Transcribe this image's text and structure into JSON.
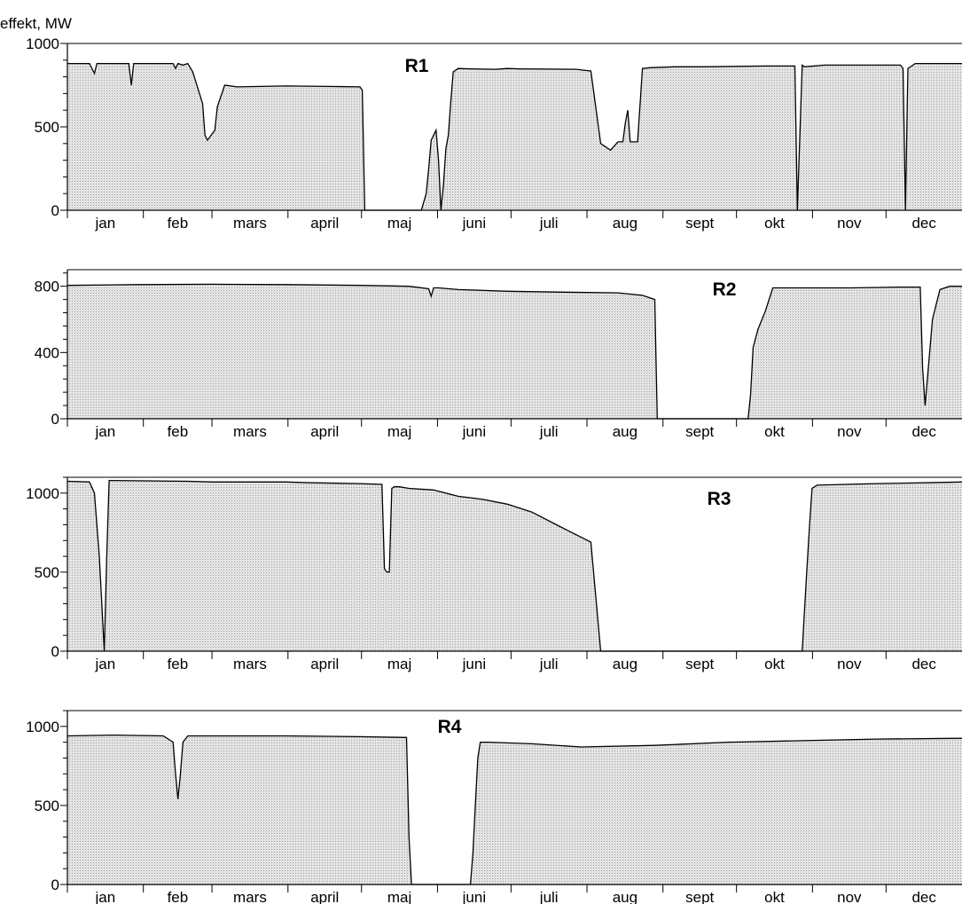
{
  "y_axis_label": "effekt, MW",
  "colors": {
    "fill": "#d8d8d8",
    "line": "#000000",
    "axis": "#000000"
  },
  "chart_data": [
    {
      "type": "area",
      "title": "R1",
      "ylabel": "effekt, MW",
      "ylim": [
        0,
        1000
      ],
      "yticks": [
        0,
        500,
        1000
      ],
      "month_labels": [
        "jan",
        "feb",
        "mars",
        "april",
        "maj",
        "juni",
        "juli",
        "aug",
        "sept",
        "okt",
        "nov",
        "dec"
      ],
      "x_unit": "day of year",
      "x": [
        1,
        10,
        12,
        13,
        26,
        27,
        28,
        29,
        31,
        32,
        44,
        45,
        46,
        48,
        50,
        52,
        56,
        57,
        58,
        61,
        62,
        65,
        70,
        90,
        110,
        120,
        121,
        122,
        130,
        131,
        136,
        145,
        147,
        148,
        149,
        151,
        152,
        153,
        154,
        155,
        156,
        157,
        158,
        160,
        165,
        175,
        180,
        185,
        208,
        211,
        214,
        218,
        219,
        222,
        225,
        226,
        227,
        228,
        229,
        230,
        233,
        235,
        238,
        248,
        260,
        285,
        297,
        298,
        300,
        301,
        309,
        330,
        340,
        341,
        342,
        343,
        346,
        360,
        365
      ],
      "y": [
        880,
        880,
        820,
        880,
        880,
        750,
        880,
        880,
        880,
        880,
        880,
        850,
        880,
        870,
        880,
        830,
        640,
        450,
        420,
        480,
        620,
        750,
        740,
        745,
        742,
        740,
        720,
        0,
        0,
        0,
        0,
        0,
        100,
        250,
        420,
        480,
        300,
        0,
        150,
        370,
        450,
        650,
        830,
        850,
        848,
        845,
        850,
        848,
        845,
        840,
        835,
        400,
        390,
        360,
        410,
        410,
        410,
        520,
        600,
        410,
        410,
        850,
        855,
        860,
        860,
        865,
        865,
        0,
        870,
        860,
        870,
        870,
        870,
        850,
        0,
        850,
        880,
        880,
        880
      ]
    },
    {
      "type": "area",
      "title": "R2",
      "ylabel": "effekt, MW",
      "ylim": [
        0,
        900
      ],
      "yticks": [
        0,
        400,
        800
      ],
      "month_labels": [
        "jan",
        "feb",
        "mars",
        "april",
        "maj",
        "juni",
        "juli",
        "aug",
        "sept",
        "okt",
        "nov",
        "dec"
      ],
      "x_unit": "day of year",
      "x": [
        1,
        30,
        60,
        90,
        120,
        140,
        148,
        149,
        150,
        152,
        160,
        180,
        200,
        225,
        235,
        240,
        241,
        242,
        260,
        270,
        278,
        279,
        280,
        282,
        285,
        288,
        300,
        320,
        340,
        348,
        349,
        350,
        353,
        356,
        360,
        365
      ],
      "y": [
        805,
        810,
        812,
        810,
        805,
        800,
        785,
        740,
        790,
        790,
        780,
        770,
        765,
        760,
        745,
        720,
        0,
        0,
        0,
        0,
        0,
        150,
        430,
        540,
        650,
        790,
        790,
        790,
        795,
        795,
        300,
        80,
        600,
        780,
        800,
        800
      ]
    },
    {
      "type": "area",
      "title": "R3",
      "ylabel": "effekt, MW",
      "ylim": [
        0,
        1100
      ],
      "yticks": [
        0,
        500,
        1000
      ],
      "month_labels": [
        "jan",
        "feb",
        "mars",
        "april",
        "maj",
        "juni",
        "juli",
        "aug",
        "sept",
        "okt",
        "nov",
        "dec"
      ],
      "x_unit": "day of year",
      "x": [
        1,
        10,
        12,
        14,
        16,
        17,
        18,
        20,
        50,
        60,
        90,
        100,
        120,
        129,
        130,
        131,
        132,
        133,
        134,
        136,
        140,
        150,
        160,
        170,
        180,
        190,
        200,
        205,
        214,
        218,
        219,
        220,
        240,
        260,
        285,
        300,
        301,
        302,
        303,
        304,
        306,
        330,
        350,
        365
      ],
      "y": [
        1075,
        1070,
        1000,
        600,
        0,
        600,
        1080,
        1080,
        1075,
        1070,
        1070,
        1065,
        1060,
        1055,
        520,
        500,
        500,
        1030,
        1040,
        1040,
        1030,
        1020,
        980,
        960,
        930,
        880,
        800,
        760,
        690,
        0,
        0,
        0,
        0,
        0,
        0,
        0,
        280,
        550,
        800,
        1030,
        1050,
        1060,
        1065,
        1070
      ]
    },
    {
      "type": "area",
      "title": "R4",
      "ylabel": "effekt, MW",
      "ylim": [
        0,
        1100
      ],
      "yticks": [
        0,
        500,
        1000
      ],
      "month_labels": [
        "jan",
        "feb",
        "mars",
        "april",
        "maj",
        "juni",
        "juli",
        "aug",
        "sept",
        "okt",
        "nov",
        "dec"
      ],
      "x_unit": "day of year",
      "x": [
        1,
        20,
        40,
        44,
        45,
        46,
        47,
        48,
        50,
        60,
        90,
        120,
        139,
        140,
        141,
        142,
        145,
        150,
        160,
        165,
        166,
        167,
        168,
        169,
        170,
        172,
        190,
        210,
        240,
        270,
        300,
        330,
        365
      ],
      "y": [
        940,
        945,
        940,
        900,
        700,
        540,
        700,
        900,
        940,
        940,
        940,
        935,
        930,
        300,
        0,
        0,
        0,
        0,
        0,
        0,
        200,
        500,
        800,
        900,
        900,
        900,
        890,
        870,
        880,
        900,
        910,
        920,
        925
      ]
    }
  ]
}
